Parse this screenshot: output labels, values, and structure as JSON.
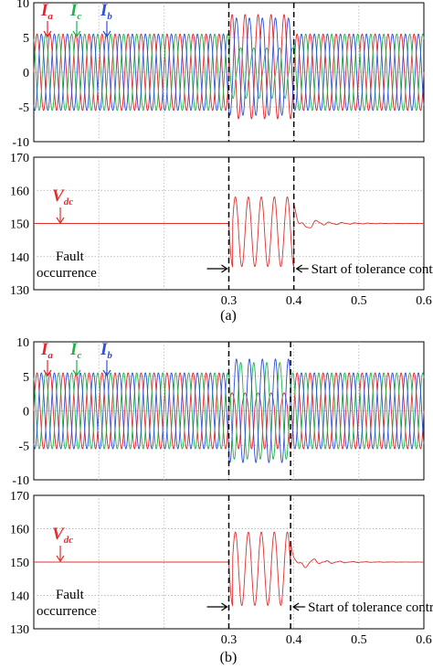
{
  "colors": {
    "ia": "#e8212a",
    "ic": "#22b14c",
    "ib": "#2b4fd8",
    "vdc": "#e03030",
    "grid": "#a8a8a8"
  },
  "chart_data": [
    {
      "type": "line",
      "panel": "current",
      "ylim": [
        -10,
        10
      ],
      "xlim": [
        0,
        0.6
      ],
      "yticks": [
        "-10",
        "-5",
        "0",
        "5",
        "10"
      ],
      "xticks": [],
      "grid": true,
      "series": [
        {
          "name": "I",
          "subscript": "a",
          "color_key": "ia"
        },
        {
          "name": "I",
          "subscript": "c",
          "color_key": "ic"
        },
        {
          "name": "I",
          "subscript": "b",
          "color_key": "ib"
        }
      ],
      "frequency_hz": 50,
      "amplitude_normal": 5.5,
      "fault_window": [
        0.3,
        0.4
      ],
      "amplitude_fault": {
        "ia": 7.5,
        "ic": 2.5,
        "ib": 7.0
      }
    },
    {
      "type": "line",
      "panel": "vdc",
      "ylim": [
        130,
        170
      ],
      "xlim": [
        0,
        0.6
      ],
      "yticks": [
        "130",
        "140",
        "150",
        "160",
        "170"
      ],
      "xticks": [
        "0.3",
        "0.4",
        "0.5",
        "0.6"
      ],
      "grid": true,
      "series": [
        {
          "name": "V",
          "subscript": "dc",
          "color_key": "vdc"
        }
      ],
      "nominal": 150,
      "ripple_fault": [
        137,
        158
      ],
      "fault_line": 0.3,
      "control_line": 0.4,
      "annotations": [
        "Fault",
        "occurrence",
        "Start of tolerance control"
      ]
    },
    {
      "type": "line",
      "panel": "current",
      "ylim": [
        -10,
        10
      ],
      "xlim": [
        0,
        0.6
      ],
      "yticks": [
        "-10",
        "-5",
        "0",
        "5",
        "10"
      ],
      "xticks": [],
      "grid": true,
      "series": [
        {
          "name": "I",
          "subscript": "a",
          "color_key": "ia"
        },
        {
          "name": "I",
          "subscript": "c",
          "color_key": "ic"
        },
        {
          "name": "I",
          "subscript": "b",
          "color_key": "ib"
        }
      ],
      "frequency_hz": 50,
      "amplitude_normal": 5.5,
      "fault_window": [
        0.3,
        0.395
      ],
      "amplitude_fault": {
        "ia": 6.0,
        "ic": 7.0,
        "ib": 7.5
      }
    },
    {
      "type": "line",
      "panel": "vdc",
      "ylim": [
        130,
        170
      ],
      "xlim": [
        0,
        0.6
      ],
      "yticks": [
        "130",
        "140",
        "150",
        "160",
        "170"
      ],
      "xticks": [
        "0.3",
        "0.4",
        "0.5",
        "0.6"
      ],
      "grid": true,
      "series": [
        {
          "name": "V",
          "subscript": "dc",
          "color_key": "vdc"
        }
      ],
      "nominal": 150,
      "ripple_fault": [
        137,
        159
      ],
      "fault_line": 0.3,
      "control_line": 0.395,
      "annotations": [
        "Fault",
        "occurrence",
        "Start of tolerance control"
      ]
    }
  ],
  "captions": [
    "(a)",
    "(b)"
  ]
}
